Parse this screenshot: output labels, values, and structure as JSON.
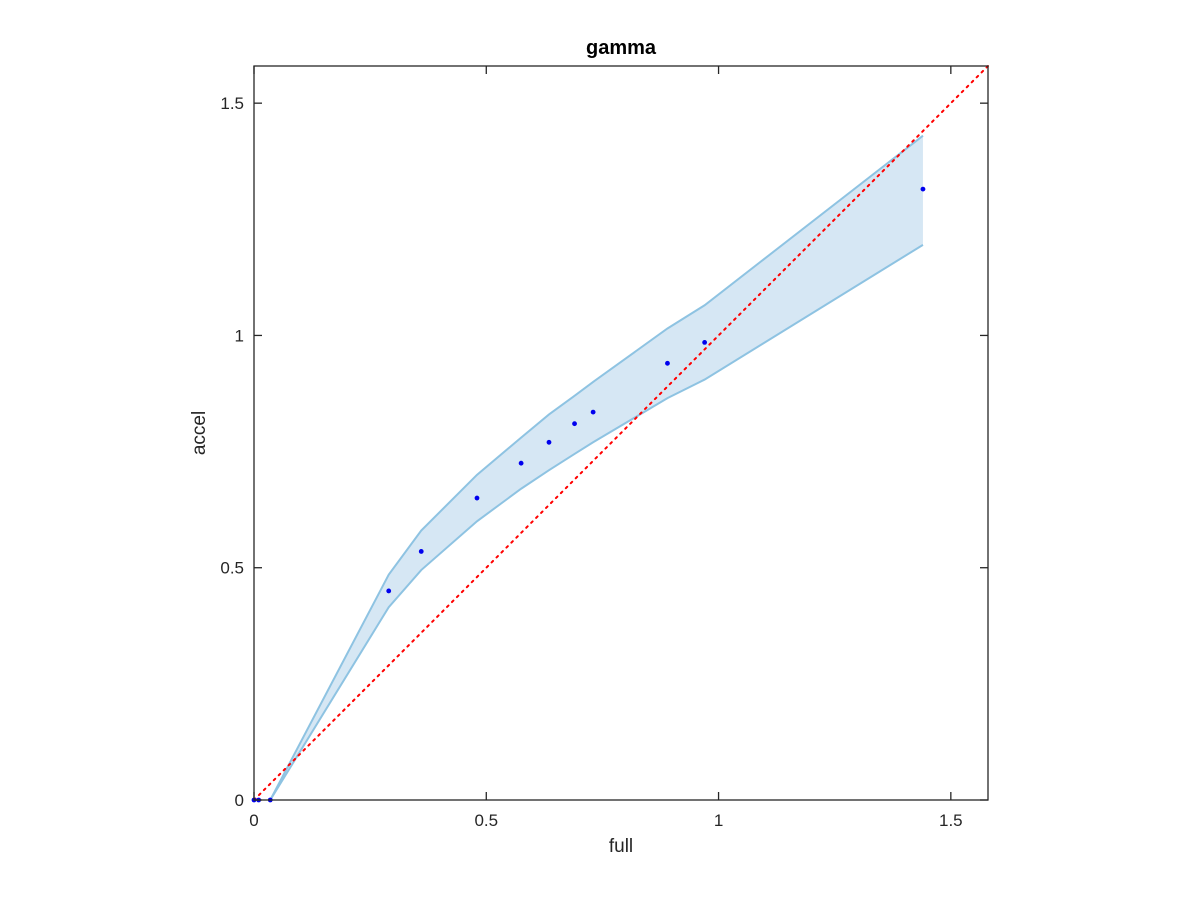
{
  "chart_data": {
    "type": "scatter",
    "title": "gamma",
    "xlabel": "full",
    "ylabel": "accel",
    "xlim": [
      0,
      1.58
    ],
    "ylim": [
      0,
      1.58
    ],
    "xticks": [
      0,
      0.5,
      1,
      1.5
    ],
    "xtick_labels": [
      "0",
      "0.5",
      "1",
      "1.5"
    ],
    "yticks": [
      0,
      0.5,
      1,
      1.5
    ],
    "ytick_labels": [
      "0",
      "0.5",
      "1",
      "1.5"
    ],
    "grid": false,
    "points": {
      "color": "#0000ee",
      "x": [
        0.0,
        0.01,
        0.035,
        0.29,
        0.36,
        0.48,
        0.575,
        0.635,
        0.69,
        0.73,
        0.89,
        0.97,
        1.44
      ],
      "y": [
        0.0,
        0.0,
        0.0,
        0.45,
        0.535,
        0.65,
        0.725,
        0.77,
        0.81,
        0.835,
        0.94,
        0.985,
        1.315
      ]
    },
    "band": {
      "fill": "#d6e7f4",
      "line_color": "#8ec3e2",
      "x": [
        0.035,
        0.29,
        0.36,
        0.48,
        0.575,
        0.635,
        0.69,
        0.73,
        0.89,
        0.97,
        1.44
      ],
      "upper": [
        0.0,
        0.485,
        0.58,
        0.7,
        0.78,
        0.83,
        0.87,
        0.9,
        1.015,
        1.065,
        1.43
      ],
      "lower": [
        0.0,
        0.415,
        0.495,
        0.6,
        0.67,
        0.71,
        0.745,
        0.77,
        0.865,
        0.905,
        1.195
      ]
    },
    "reference_line": {
      "color": "#ff0000",
      "style": "dotted",
      "x": [
        0,
        1.58
      ],
      "y": [
        0,
        1.58
      ]
    }
  }
}
